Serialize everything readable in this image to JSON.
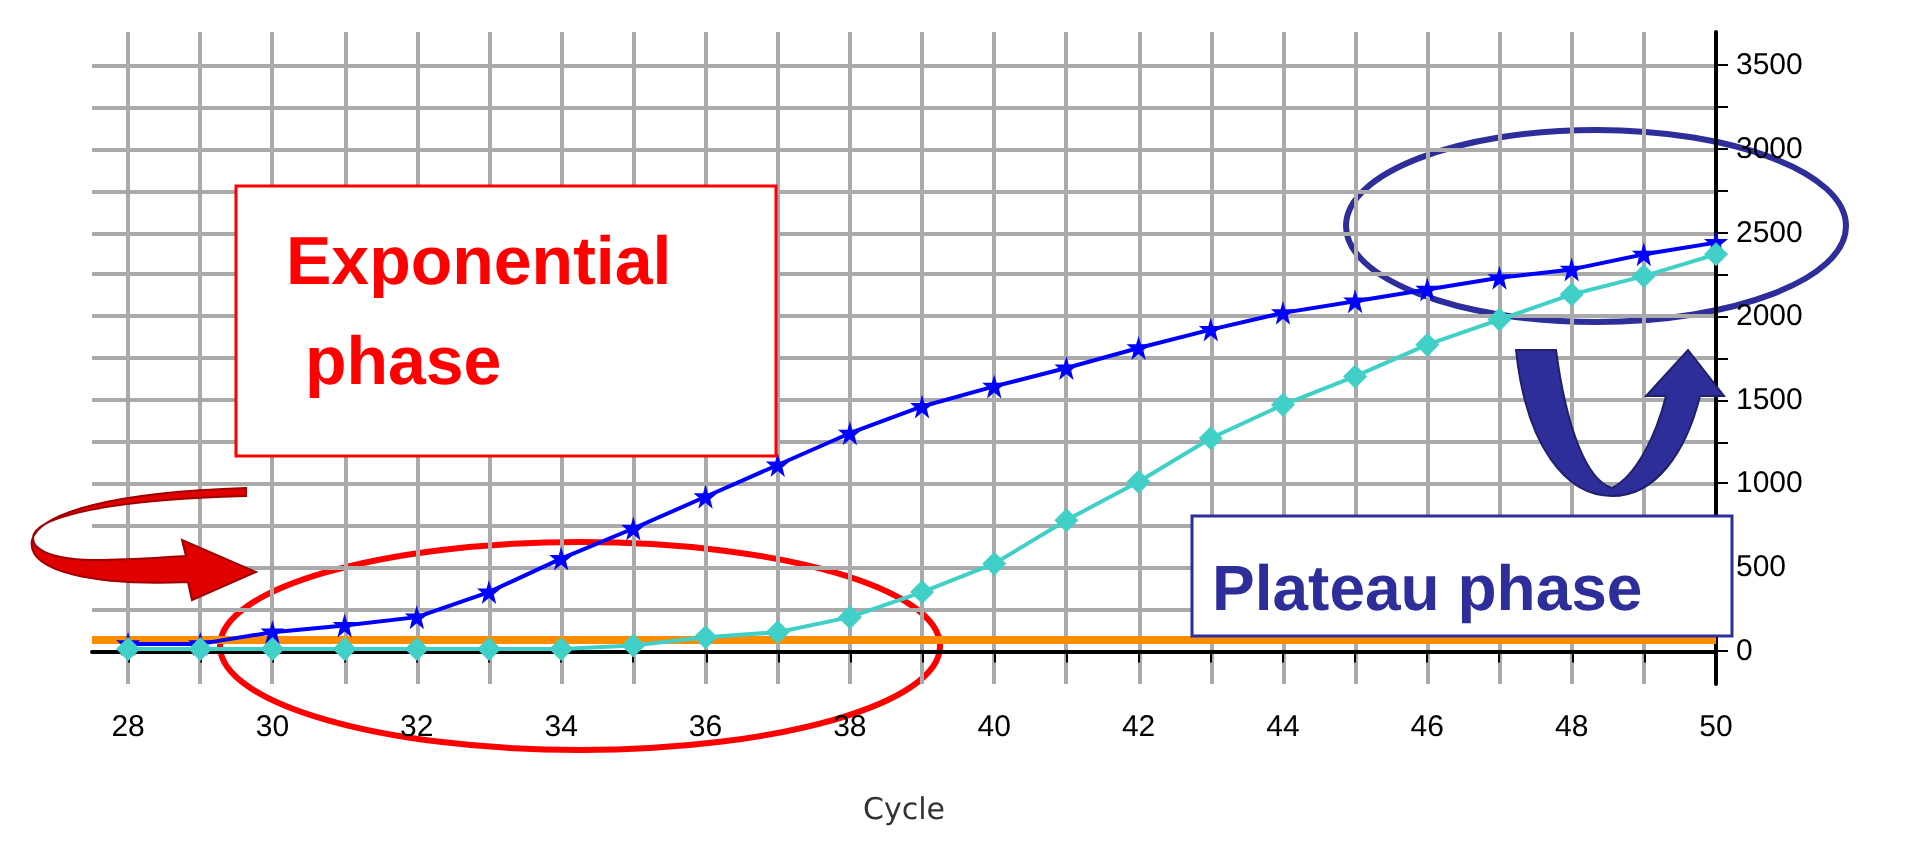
{
  "chart_data": {
    "type": "line",
    "xlabel": "Cycle",
    "annotations": [
      "Exponential phase",
      "Plateau phase"
    ],
    "x": [
      28,
      29,
      30,
      31,
      32,
      33,
      34,
      35,
      36,
      37,
      38,
      39,
      40,
      41,
      42,
      43,
      44,
      45,
      46,
      47,
      48,
      49,
      50
    ],
    "series": [
      {
        "color": "#0000ff",
        "marker": "star",
        "values": [
          40,
          40,
          110,
          150,
          200,
          350,
          550,
          730,
          920,
          1110,
          1300,
          1460,
          1580,
          1690,
          1810,
          1920,
          2020,
          2090,
          2160,
          2230,
          2280,
          2370,
          2440
        ]
      },
      {
        "color": "#40d0c8",
        "marker": "diamond",
        "values": [
          10,
          10,
          10,
          10,
          10,
          10,
          10,
          30,
          80,
          110,
          200,
          350,
          520,
          780,
          1010,
          1270,
          1470,
          1640,
          1830,
          1980,
          2130,
          2240,
          2370
        ]
      }
    ],
    "ref_lines": [
      {
        "axis": "y",
        "value": 70,
        "color": "#ff8c00"
      }
    ],
    "xlim": [
      27.5,
      50
    ],
    "ylim": [
      -200,
      3700
    ],
    "xticks": [
      28,
      {
        "value": 29,
        "label": null
      },
      30,
      {
        "value": 31,
        "label": null
      },
      32,
      {
        "value": 33,
        "label": null
      },
      34,
      {
        "value": 35,
        "label": null
      },
      36,
      {
        "value": 37,
        "label": null
      },
      38,
      {
        "value": 39,
        "label": null
      },
      40,
      {
        "value": 41,
        "label": null
      },
      42,
      {
        "value": 43,
        "label": null
      },
      44,
      {
        "value": 45,
        "label": null
      },
      46,
      {
        "value": 47,
        "label": null
      },
      48,
      {
        "value": 49,
        "label": null
      },
      50
    ],
    "yticks": [
      0,
      {
        "value": 250,
        "label": null
      },
      500,
      {
        "value": 750,
        "label": null
      },
      1000,
      {
        "value": 1250,
        "label": null
      },
      1500,
      {
        "value": 1750,
        "label": null
      },
      2000,
      {
        "value": 2250,
        "label": null
      },
      2500,
      {
        "value": 2750,
        "label": null
      },
      3000,
      {
        "value": 3250,
        "label": null
      },
      3500
    ],
    "grid": true
  }
}
